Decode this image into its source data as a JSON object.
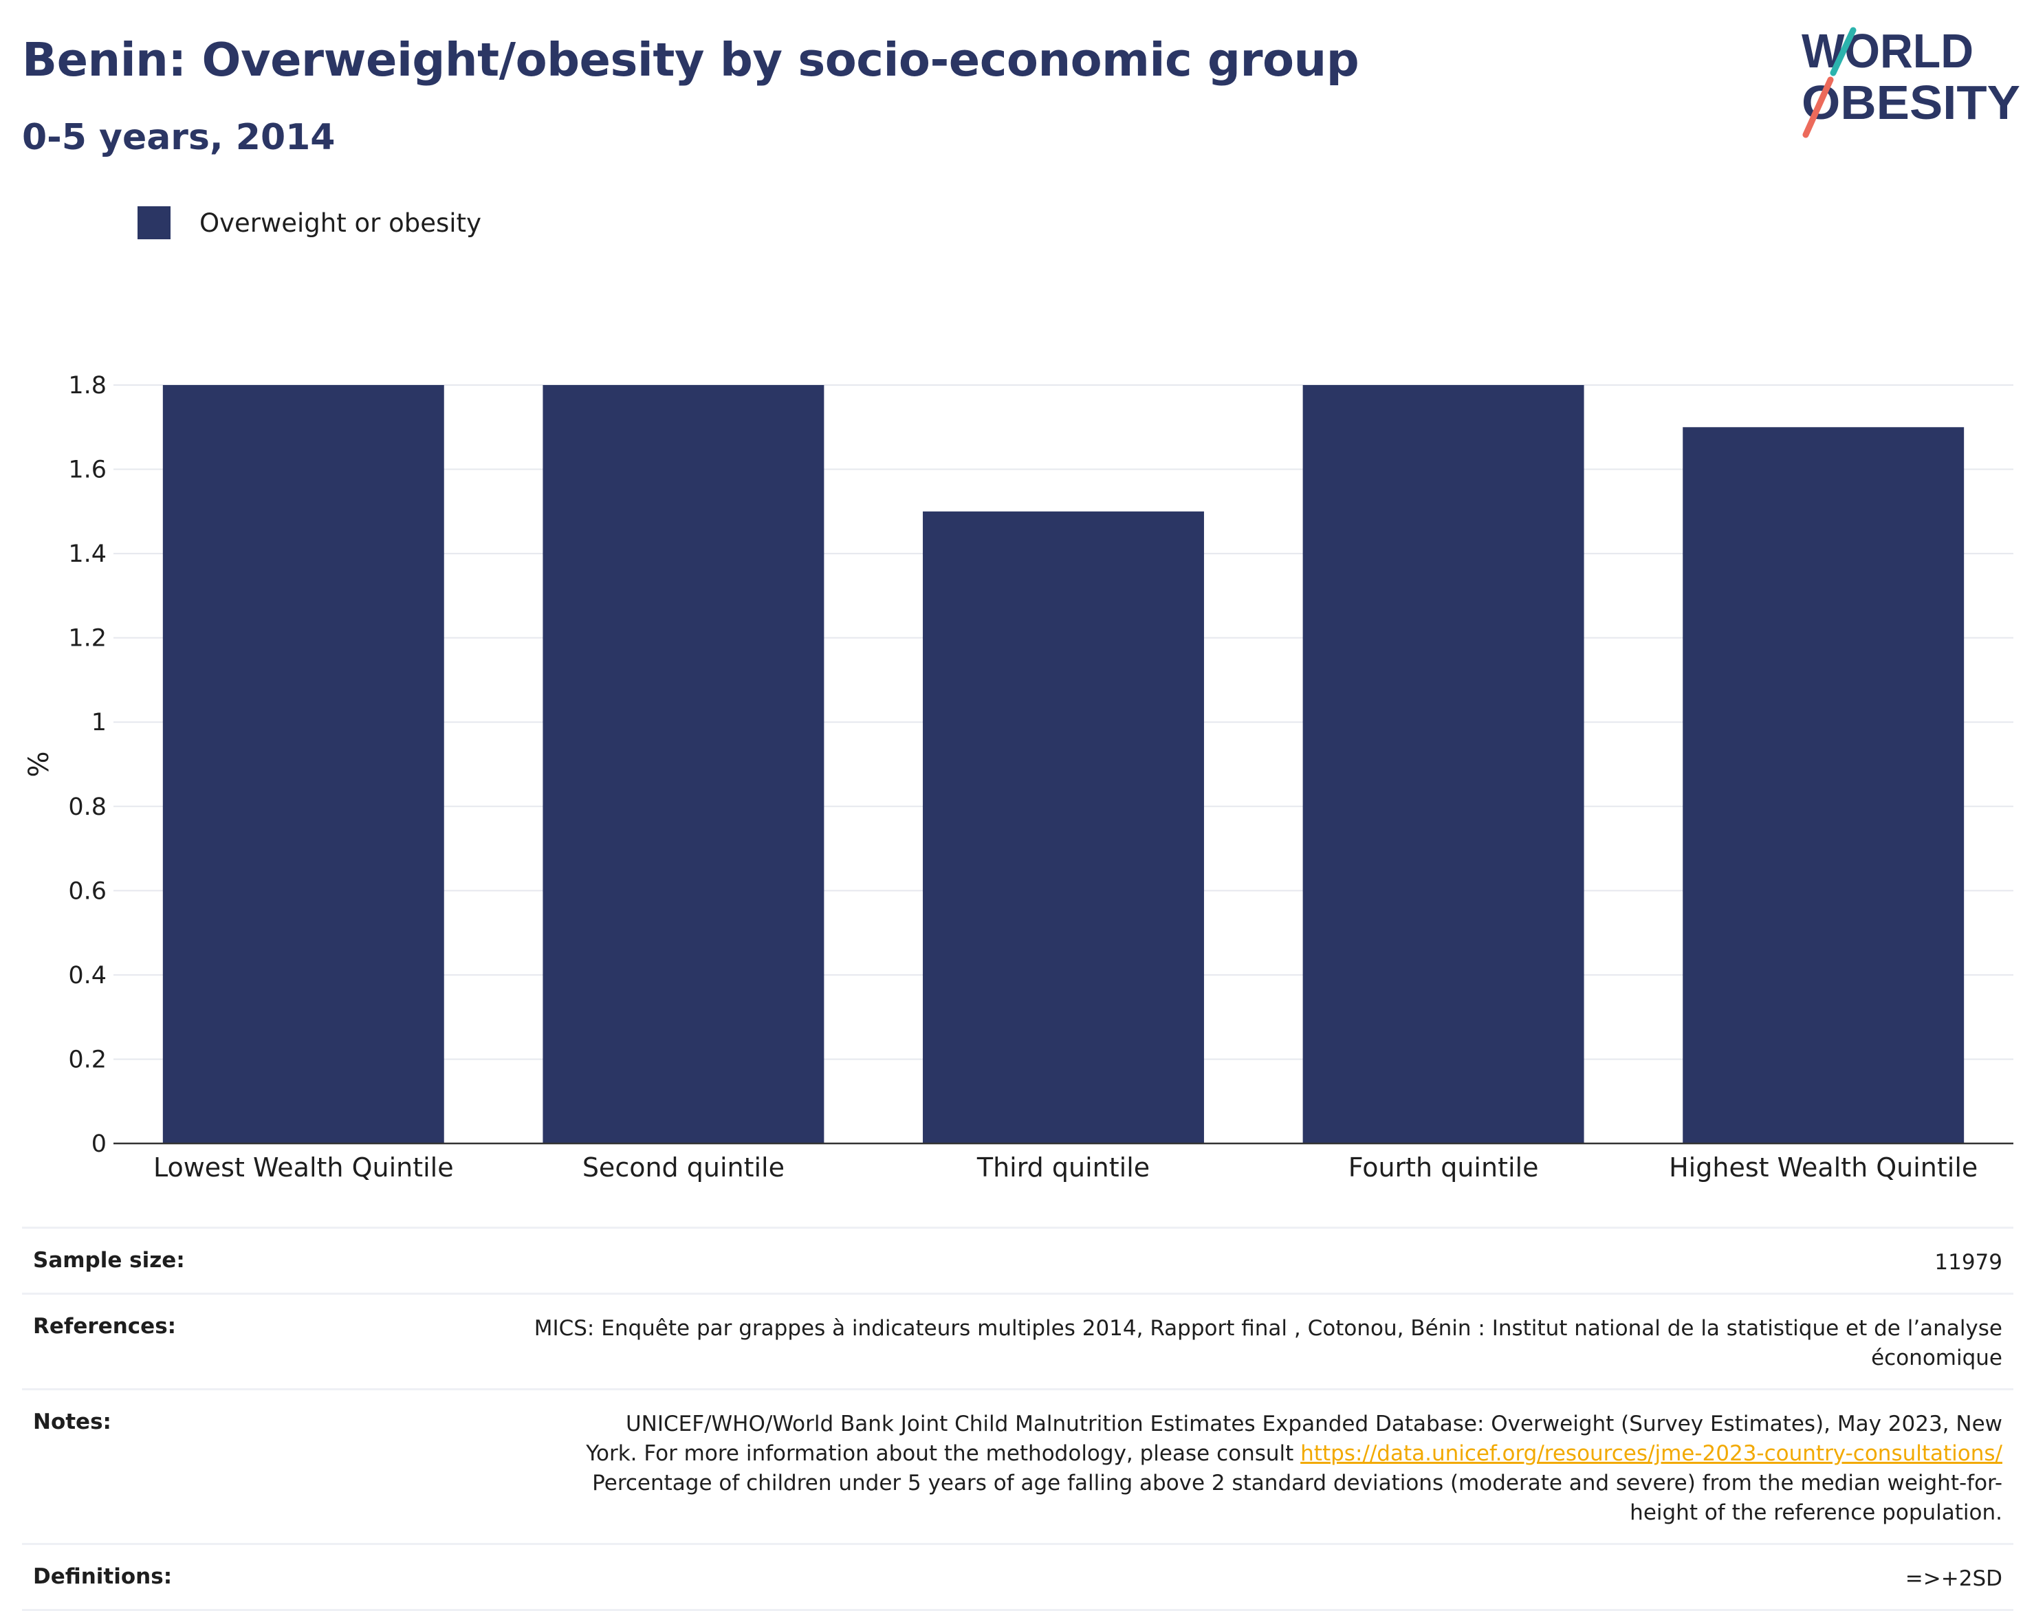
{
  "header": {
    "title": "Benin: Overweight/obesity by socio-economic group",
    "subtitle": "0-5 years, 2014"
  },
  "logo": {
    "line1": "WORLD",
    "line2": "OBESITY"
  },
  "legend": {
    "label": "Overweight or obesity"
  },
  "colors": {
    "bar": "#2b3664",
    "grid": "#e6e8ee",
    "axis": "#333333",
    "link": "#f2a900",
    "logo_teal": "#2cb3ad",
    "logo_coral": "#ec6a5b"
  },
  "chart_data": {
    "type": "bar",
    "categories": [
      "Lowest Wealth Quintile",
      "Second quintile",
      "Third quintile",
      "Fourth quintile",
      "Highest Wealth Quintile"
    ],
    "series": [
      {
        "name": "Overweight or obesity",
        "values": [
          1.8,
          1.8,
          1.5,
          1.8,
          1.7
        ]
      }
    ],
    "ylabel": "%",
    "ylim": [
      0,
      1.8
    ],
    "yticks": [
      0,
      0.2,
      0.4,
      0.6,
      0.8,
      1,
      1.2,
      1.4,
      1.6,
      1.8
    ],
    "ytick_labels": [
      "0",
      "0.2",
      "0.4",
      "0.6",
      "0.8",
      "1",
      "1.2",
      "1.4",
      "1.6",
      "1.8"
    ],
    "grid": true,
    "legend_position": "top-left"
  },
  "info": {
    "sample_size_label": "Sample size:",
    "sample_size_value": "11979",
    "references_label": "References:",
    "references_value": "MICS: Enquête par grappes à indicateurs multiples 2014, Rapport final , Cotonou, Bénin : Institut national de la statistique et de l’analyse économique",
    "notes_label": "Notes:",
    "notes_text1": "UNICEF/WHO/World Bank Joint Child Malnutrition Estimates Expanded Database: Overweight (Survey Estimates), May 2023, New York. For more information about the methodology, please consult ",
    "notes_link": "https://data.unicef.org/resources/jme-2023-country-consultations/",
    "notes_text2": " Percentage of children under 5 years of age falling above 2 standard deviations (moderate and severe) from the median weight-for-height of the reference population.",
    "definitions_label": "Definitions:",
    "definitions_value": "=>+2SD"
  }
}
